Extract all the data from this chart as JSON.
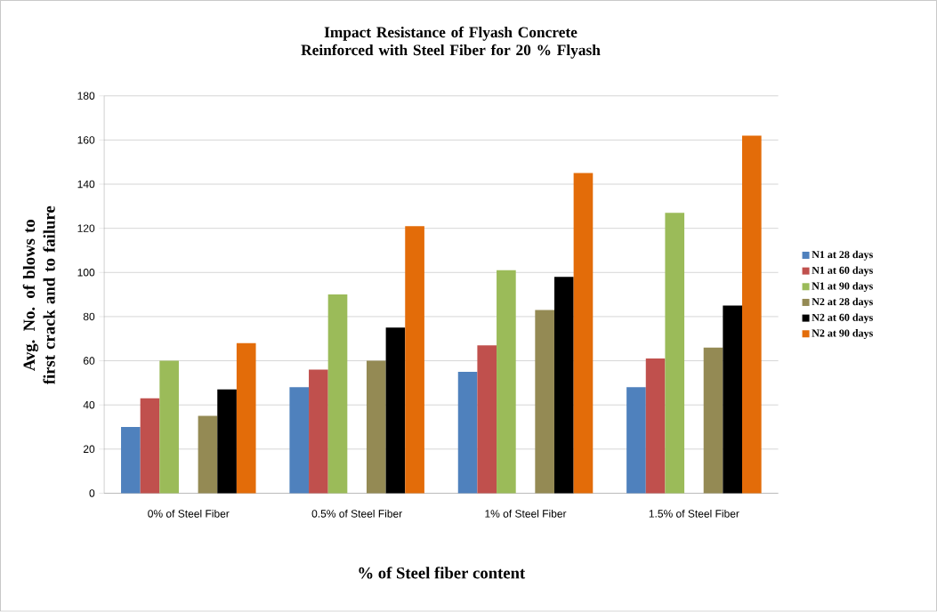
{
  "chart_data": {
    "type": "bar",
    "title": "Impact Resistance of Flyash Concrete Reinforced with Steel Fiber for 20 % Flyash",
    "xlabel": "% of Steel fiber content",
    "ylabel": "Avg. No. of blows to first crack and to failure",
    "categories": [
      "0% of Steel Fiber",
      "0.5% of Steel Fiber",
      "1% of Steel Fiber",
      "1.5% of Steel Fiber"
    ],
    "series": [
      {
        "name": "N1 at 28 days",
        "color": "#4f81bd",
        "values": [
          30,
          48,
          55,
          48
        ]
      },
      {
        "name": "N1 at 60 days",
        "color": "#c0504d",
        "values": [
          43,
          56,
          67,
          61
        ]
      },
      {
        "name": "N1 at 90 days",
        "color": "#9bbb59",
        "values": [
          60,
          90,
          101,
          127
        ]
      },
      {
        "name": "N2 at 28 days",
        "color": "#948a54",
        "values": [
          35,
          60,
          83,
          66
        ]
      },
      {
        "name": "N2 at 60 days",
        "color": "#000000",
        "values": [
          47,
          75,
          98,
          85
        ]
      },
      {
        "name": "N2 at 90 days",
        "color": "#e36c09",
        "values": [
          68,
          121,
          145,
          162
        ]
      }
    ],
    "ylim": [
      0,
      180
    ],
    "yticks": [
      0,
      20,
      40,
      60,
      80,
      100,
      120,
      140,
      160,
      180
    ],
    "grid": "y",
    "legend": "right"
  }
}
